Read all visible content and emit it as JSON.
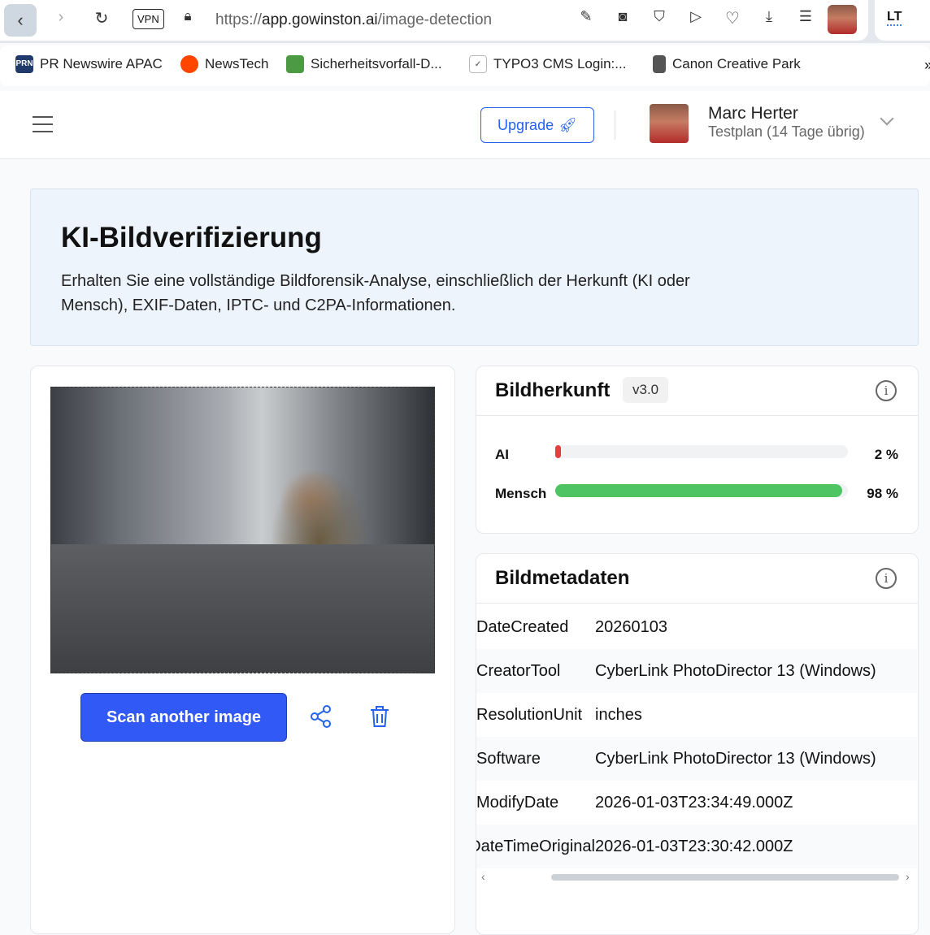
{
  "browser": {
    "url_prefix": "https://",
    "url_host": "app.gowinston.ai",
    "url_path": "/image-detection",
    "vpn": "VPN",
    "ext_lt": "LT",
    "bookmarks": [
      {
        "label": "PR Newswire APAC",
        "icon": "PRN"
      },
      {
        "label": "NewsTech"
      },
      {
        "label": "Sicherheitsvorfall-D..."
      },
      {
        "label": "TYPO3 CMS Login:..."
      },
      {
        "label": "Canon Creative Park"
      }
    ]
  },
  "header": {
    "upgrade": "Upgrade",
    "user_name": "Marc Herter",
    "plan": "Testplan (14 Tage übrig)"
  },
  "hero": {
    "title": "KI-Bildverifizierung",
    "description": "Erhalten Sie eine vollständige Bildforensik-Analyse, einschließlich der Herkunft (KI oder Mensch), EXIF-Daten, IPTC- und C2PA-Informationen."
  },
  "left": {
    "scan_button": "Scan another image"
  },
  "origin": {
    "title": "Bildherkunft",
    "version": "v3.0",
    "rows": [
      {
        "label": "AI",
        "value_text": "2 %",
        "percent": 2,
        "color": "#e53e3e"
      },
      {
        "label": "Mensch",
        "value_text": "98 %",
        "percent": 98,
        "color": "#4fc463"
      }
    ]
  },
  "metadata": {
    "title": "Bildmetadaten",
    "rows": [
      {
        "key": "DateCreated",
        "value": "20260103"
      },
      {
        "key": "CreatorTool",
        "value": "CyberLink PhotoDirector 13 (Windows)"
      },
      {
        "key": "ResolutionUnit",
        "value": "inches"
      },
      {
        "key": "Software",
        "value": "CyberLink PhotoDirector 13 (Windows)"
      },
      {
        "key": "ModifyDate",
        "value": "2026-01-03T23:34:49.000Z"
      },
      {
        "key": "DateTimeOriginal",
        "value": "2026-01-03T23:30:42.000Z"
      }
    ]
  }
}
